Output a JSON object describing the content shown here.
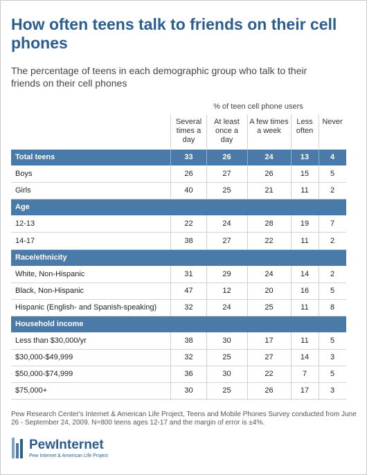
{
  "title": "How often teens talk to friends on their cell phones",
  "subtitle": "The percentage of teens in each demographic group who talk to their friends on their cell phones",
  "units_note": "% of teen cell phone users",
  "source": "Pew Research Center's Internet & American Life Project, Teens and Mobile Phones Survey conducted from June 26 - September 24, 2009. N=800 teens ages 12-17 and the margin of error is ±4%.",
  "logo": {
    "word": "PewInternet",
    "tag": "Pew Internet & American Life Project"
  },
  "colors": {
    "title": "#2b5d8f",
    "band": "#4a7aa8"
  },
  "chart_data": {
    "type": "table",
    "columns": [
      "Several times a day",
      "At least once a day",
      "A few times a week",
      "Less often",
      "Never"
    ],
    "rows": [
      {
        "label": "Total teens",
        "kind": "total",
        "values": [
          33,
          26,
          24,
          13,
          4
        ]
      },
      {
        "label": "Boys",
        "kind": "data",
        "values": [
          26,
          27,
          26,
          15,
          5
        ]
      },
      {
        "label": "Girls",
        "kind": "data",
        "values": [
          40,
          25,
          21,
          11,
          2
        ]
      },
      {
        "label": "Age",
        "kind": "section"
      },
      {
        "label": "12-13",
        "kind": "data",
        "values": [
          22,
          24,
          28,
          19,
          7
        ]
      },
      {
        "label": "14-17",
        "kind": "data",
        "values": [
          38,
          27,
          22,
          11,
          2
        ]
      },
      {
        "label": "Race/ethnicity",
        "kind": "section"
      },
      {
        "label": "White, Non-Hispanic",
        "kind": "data",
        "values": [
          31,
          29,
          24,
          14,
          2
        ]
      },
      {
        "label": "Black, Non-Hispanic",
        "kind": "data",
        "values": [
          47,
          12,
          20,
          16,
          5
        ]
      },
      {
        "label": "Hispanic (English- and Spanish-speaking)",
        "kind": "data",
        "values": [
          32,
          24,
          25,
          11,
          8
        ]
      },
      {
        "label": "Household income",
        "kind": "section"
      },
      {
        "label": "Less than $30,000/yr",
        "kind": "data",
        "values": [
          38,
          30,
          17,
          11,
          5
        ]
      },
      {
        "label": "$30,000-$49,999",
        "kind": "data",
        "values": [
          32,
          25,
          27,
          14,
          3
        ]
      },
      {
        "label": "$50,000-$74,999",
        "kind": "data",
        "values": [
          36,
          30,
          22,
          7,
          5
        ]
      },
      {
        "label": "$75,000+",
        "kind": "data",
        "values": [
          30,
          25,
          26,
          17,
          3
        ]
      }
    ]
  }
}
